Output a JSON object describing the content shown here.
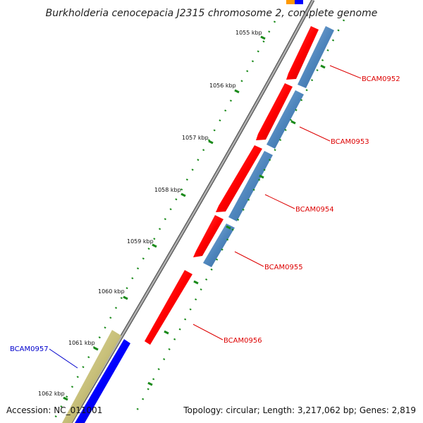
{
  "title": "Burkholderia cenocepacia J2315 chromosome 2, complete genome",
  "footer": {
    "accession": "Accession: NC_011001",
    "summary": "Topology: circular; Length: 3,217,062 bp; Genes: 2,819"
  },
  "ticks": [
    "1055 kbp",
    "1056 kbp",
    "1057 kbp",
    "1058 kbp",
    "1059 kbp",
    "1060 kbp",
    "1061 kbp",
    "1062 kbp"
  ],
  "genes": [
    {
      "label": "BCAM0952",
      "color": "#dd0000"
    },
    {
      "label": "BCAM0953",
      "color": "#dd0000"
    },
    {
      "label": "BCAM0954",
      "color": "#dd0000"
    },
    {
      "label": "BCAM0955",
      "color": "#dd0000"
    },
    {
      "label": "BCAM0956",
      "color": "#dd0000"
    },
    {
      "label": "BCAM0957",
      "color": "#0000cc"
    }
  ],
  "colors": {
    "forward_cds": "#ff0000",
    "blast_hit": "#4f86bd",
    "reverse_cds": "#0000ff",
    "olive_feature": "#c8c07a",
    "backbone": "#888888",
    "tick": "#1a8a1a"
  }
}
